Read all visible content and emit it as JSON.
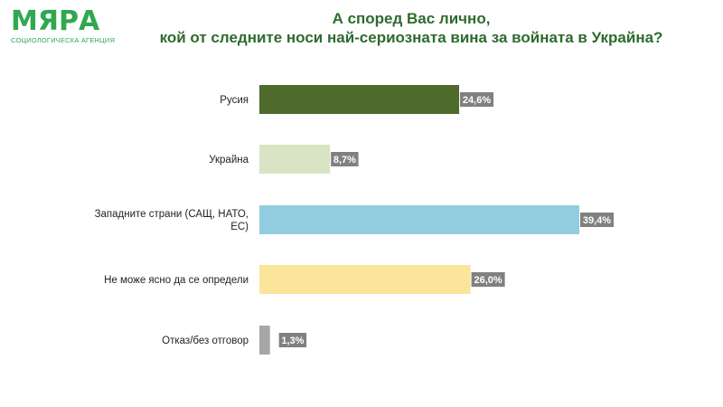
{
  "logo": {
    "word": "МЯРА",
    "subtitle": "СОЦИОЛОГИЧЕСКА АГЕНЦИЯ"
  },
  "title": {
    "line1": "А според Вас лично,",
    "line2": "кой от следните носи най-сериозната вина за войната в Украйна?"
  },
  "colors": {
    "title": "#2e6b2e",
    "logo": "#2fa84f",
    "value_label_bg": "#808080"
  },
  "chart_data": {
    "type": "bar",
    "orientation": "horizontal",
    "categories": [
      [
        "Русия"
      ],
      [
        "Украйна"
      ],
      [
        "Западните страни (САЩ, НАТО,",
        "ЕС)"
      ],
      [
        "Не може ясно да се определи"
      ],
      [
        "Отказ/без отговор"
      ]
    ],
    "values": [
      24.6,
      8.7,
      39.4,
      26.0,
      1.3
    ],
    "value_labels": [
      "24,6%",
      "8,7%",
      "39,4%",
      "26,0%",
      "1,3%"
    ],
    "bar_colors": [
      "#4e6b2b",
      "#d9e4c4",
      "#92cddf",
      "#fbe59b",
      "#a6a6a6"
    ],
    "xlim": [
      0,
      39.4
    ],
    "grid": false,
    "legend": "none"
  }
}
